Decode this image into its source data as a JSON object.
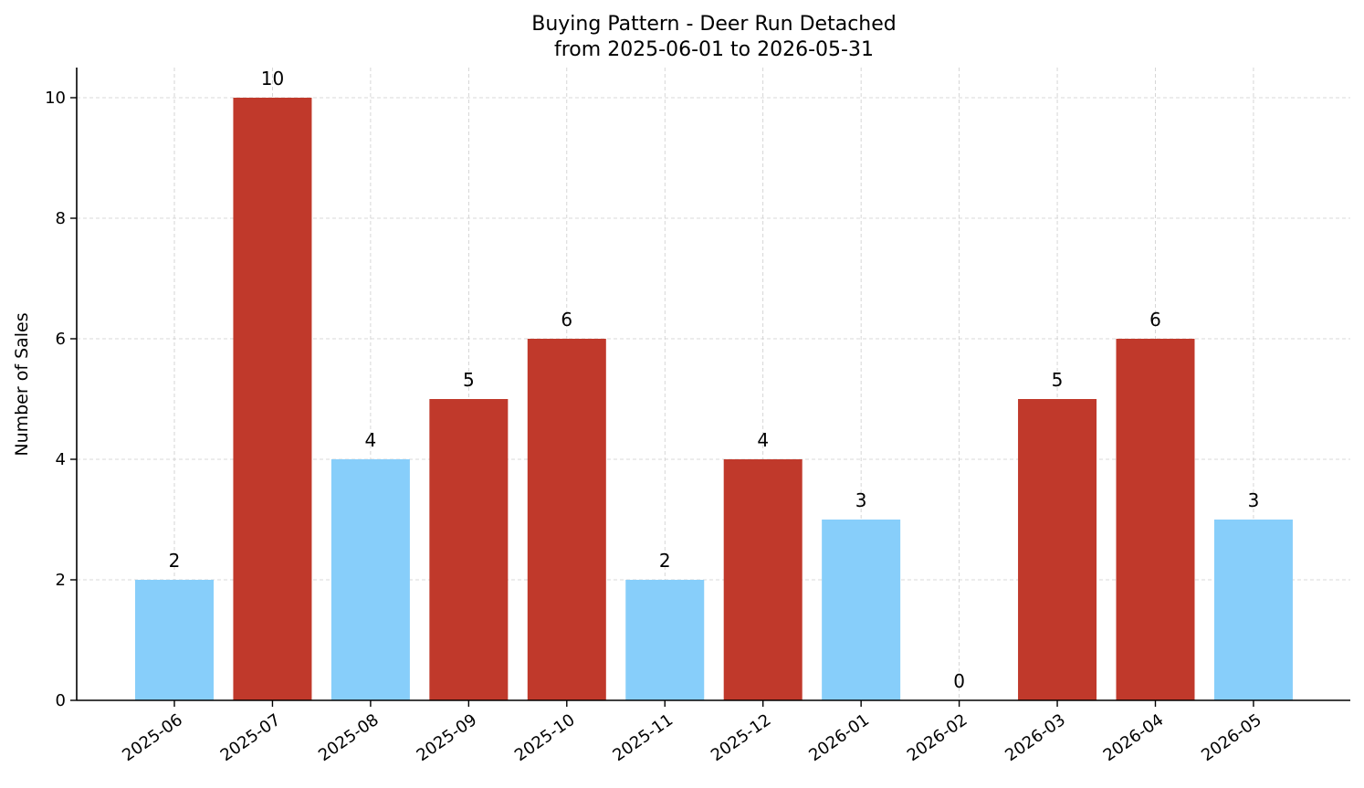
{
  "chart_data": {
    "type": "bar",
    "title": "Buying Pattern - Deer Run Detached",
    "subtitle": "from 2025-06-01 to 2026-05-31",
    "xlabel": "",
    "ylabel": "Number of Sales",
    "categories": [
      "2025-06",
      "2025-07",
      "2025-08",
      "2025-09",
      "2025-10",
      "2025-11",
      "2025-12",
      "2026-01",
      "2026-02",
      "2026-03",
      "2026-04",
      "2026-05"
    ],
    "values": [
      2,
      10,
      4,
      5,
      6,
      2,
      4,
      3,
      0,
      5,
      6,
      3
    ],
    "value_labels": [
      "2",
      "10",
      "4",
      "5",
      "6",
      "2",
      "4",
      "3",
      "0",
      "5",
      "6",
      "3"
    ],
    "bar_colors": [
      "#87CEFA",
      "#C0392B",
      "#87CEFA",
      "#C0392B",
      "#C0392B",
      "#87CEFA",
      "#C0392B",
      "#87CEFA",
      "#87CEFA",
      "#C0392B",
      "#C0392B",
      "#87CEFA"
    ],
    "ylim": [
      0,
      10.5
    ],
    "yticks": [
      "0",
      "2",
      "4",
      "6",
      "8",
      "10"
    ],
    "grid": true,
    "legend": "none"
  }
}
